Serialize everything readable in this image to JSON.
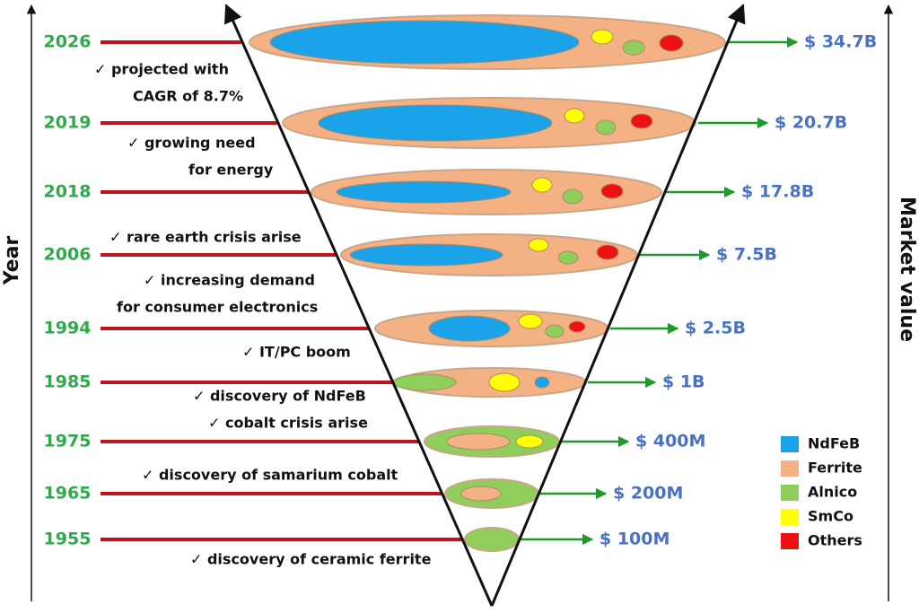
{
  "axis_left_label": "Year",
  "axis_right_label": "Market value",
  "rows": [
    {
      "year": "2026",
      "value": "$ 34.7B"
    },
    {
      "year": "2019",
      "value": "$ 20.7B"
    },
    {
      "year": "2018",
      "value": "$ 17.8B"
    },
    {
      "year": "2006",
      "value": "$ 7.5B"
    },
    {
      "year": "1994",
      "value": "$ 2.5B"
    },
    {
      "year": "1985",
      "value": "$ 1B"
    },
    {
      "year": "1975",
      "value": "$ 400M"
    },
    {
      "year": "1965",
      "value": "$ 200M"
    },
    {
      "year": "1955",
      "value": "$ 100M"
    }
  ],
  "notes": [
    {
      "lines": [
        "✓ projected with",
        "CAGR of 8.7%"
      ]
    },
    {
      "lines": [
        "✓ growing need",
        "for energy"
      ]
    },
    {
      "lines": [
        "✓ rare earth crisis arise"
      ]
    },
    {
      "lines": [
        "✓ increasing demand",
        "for consumer electronics"
      ]
    },
    {
      "lines": [
        "✓ IT/PC boom"
      ]
    },
    {
      "lines": [
        "✓ discovery of NdFeB"
      ]
    },
    {
      "lines": [
        "✓ cobalt crisis arise"
      ]
    },
    {
      "lines": [
        "✓ discovery of samarium cobalt"
      ]
    },
    {
      "lines": [
        "✓ discovery of ceramic ferrite"
      ]
    }
  ],
  "legend": [
    {
      "label": "NdFeB",
      "color": "#1aa3e8"
    },
    {
      "label": "Ferrite",
      "color": "#f4b183"
    },
    {
      "label": "Alnico",
      "color": "#8fce5a"
    },
    {
      "label": "SmCo",
      "color": "#ffff00"
    },
    {
      "label": "Others",
      "color": "#ee1111"
    }
  ]
}
